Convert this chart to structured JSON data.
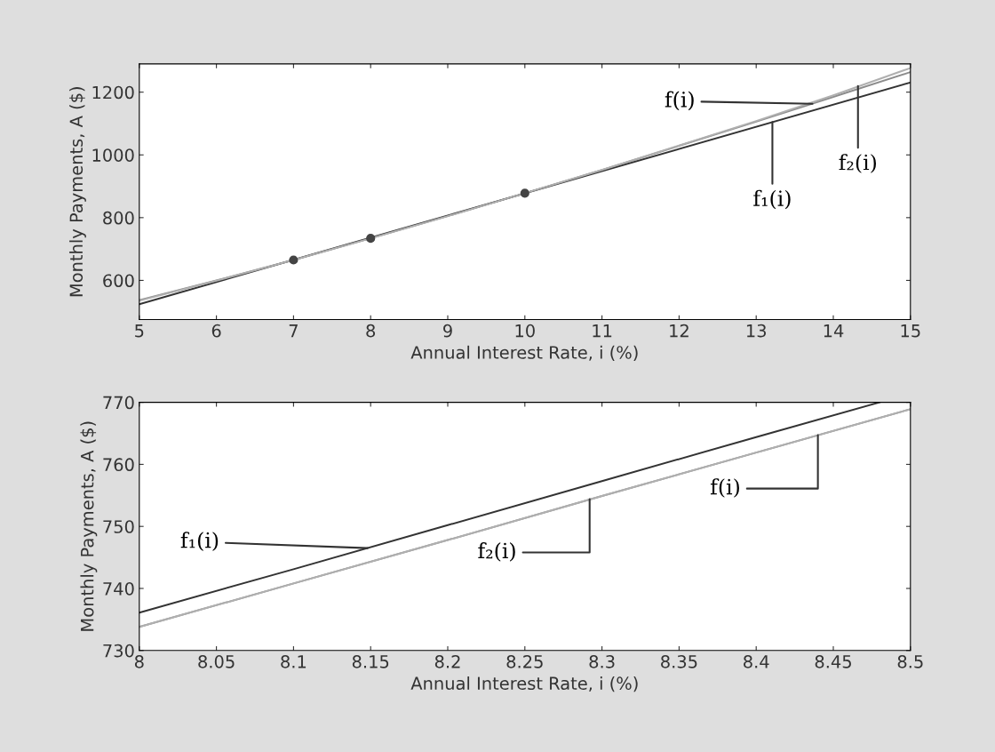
{
  "chart_data": [
    {
      "type": "line",
      "xlabel": "Annual Interest Rate, i (%)",
      "ylabel": "Monthly Payments, A ($)",
      "xlim": [
        5,
        15
      ],
      "ylim": [
        475,
        1290
      ],
      "xticks": [
        5,
        6,
        7,
        8,
        9,
        10,
        11,
        12,
        13,
        14,
        15
      ],
      "yticks": [
        600,
        800,
        1000,
        1200
      ],
      "grid": false,
      "legend": false,
      "series": [
        {
          "color": "#8c8c8c",
          "x": [
            5,
            6,
            7,
            8,
            9,
            10,
            11,
            12,
            13,
            14,
            15
          ],
          "values": [
            537,
            600,
            665,
            734,
            805,
            878,
            952,
            1029,
            1106,
            1185,
            1264
          ]
        },
        {
          "color": "#333333",
          "x": [
            5,
            15
          ],
          "values": [
            524,
            1231
          ]
        },
        {
          "color": "#b0b0b0",
          "x": [
            5,
            6,
            7,
            8,
            9,
            10,
            11,
            12,
            13,
            14,
            15
          ],
          "values": [
            535,
            599,
            665,
            734,
            805,
            878,
            952,
            1030,
            1108,
            1190,
            1277
          ]
        },
        {
          "type": "scatter",
          "color": "#444444",
          "marker": "circle",
          "x": [
            7,
            8,
            10
          ],
          "values": [
            665,
            734,
            878
          ]
        }
      ],
      "annotations": [
        {
          "text": "f(i)",
          "x": 13.73,
          "y": 1163
        },
        {
          "text": "f₁(i)",
          "x": 13.21,
          "y": 1104.7
        },
        {
          "text": "f₂(i)",
          "x": 14.32,
          "y": 1219.5
        }
      ]
    },
    {
      "type": "line",
      "xlabel": "Annual Interest Rate, i (%)",
      "ylabel": "Monthly Payments, A ($)",
      "xlim": [
        8,
        8.5
      ],
      "ylim": [
        730,
        770
      ],
      "xticks": [
        8,
        8.05,
        8.1,
        8.15,
        8.2,
        8.25,
        8.3,
        8.35,
        8.4,
        8.45,
        8.5
      ],
      "yticks": [
        730,
        740,
        750,
        760,
        770
      ],
      "grid": false,
      "legend": false,
      "series": [
        {
          "color": "#8c8c8c",
          "x": [
            8,
            8.1,
            8.2,
            8.3,
            8.4,
            8.5
          ],
          "values": [
            733.8,
            740.8,
            747.8,
            754.9,
            761.9,
            768.9
          ]
        },
        {
          "color": "#333333",
          "x": [
            8,
            8.1,
            8.2,
            8.3,
            8.4,
            8.48
          ],
          "values": [
            736.1,
            743.1,
            750.2,
            757.3,
            764.4,
            770.0
          ]
        },
        {
          "color": "#b0b0b0",
          "x": [
            8,
            8.1,
            8.2,
            8.3,
            8.4,
            8.5
          ],
          "values": [
            733.8,
            740.8,
            747.8,
            754.9,
            761.9,
            768.9
          ]
        }
      ],
      "annotations": [
        {
          "text": "f₁(i)",
          "x": 8.148,
          "y": 746.5
        },
        {
          "text": "f₂(i)",
          "x": 8.292,
          "y": 754.4
        },
        {
          "text": "f(i)",
          "x": 8.44,
          "y": 764.7
        }
      ]
    }
  ]
}
